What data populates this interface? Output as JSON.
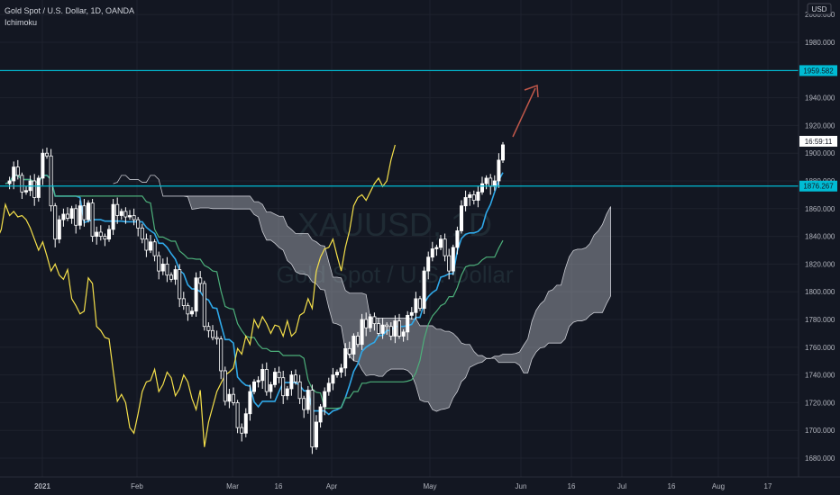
{
  "header": {
    "symbol_line": "Gold Spot / U.S. Dollar, 1D, OANDA",
    "indicator": "Ichimoku"
  },
  "watermark": {
    "ticker": "XAUUSD, 1D",
    "name": "Gold Spot / U.S. Dollar"
  },
  "currency_label": "USD",
  "price_labels": {
    "resistance": "1959.582",
    "current_time": "16:59:11",
    "support": "1876.267"
  },
  "colors": {
    "background": "#131722",
    "bull_candle": "#ffffff",
    "bear_candle": "#ffffff",
    "conversion_line": "#2fa8e8",
    "base_line": "#4caf7a",
    "lagging_span": "#f5e04a",
    "cloud_fill": "#b2b5be",
    "horizontal_line": "#00bcd4",
    "arrow": "#c0574a"
  },
  "chart_data": {
    "type": "candlestick",
    "title": "Gold Spot / U.S. Dollar, 1D, OANDA",
    "indicator": "Ichimoku",
    "ylim": [
      1670,
      2014
    ],
    "y_ticks": [
      1680,
      1700,
      1720,
      1740,
      1760,
      1780,
      1800,
      1820,
      1840,
      1860,
      1880,
      1900,
      1920,
      1940,
      1960,
      1980,
      2000
    ],
    "x_ticks": [
      "2021",
      "Feb",
      "Mar",
      "16",
      "Apr",
      "May",
      "Jun",
      "16",
      "Jul",
      "16",
      "Aug",
      "17"
    ],
    "close_series": [
      1878,
      1880,
      1890,
      1884,
      1872,
      1873,
      1880,
      1868,
      1882,
      1900,
      1898,
      1862,
      1838,
      1852,
      1856,
      1853,
      1860,
      1848,
      1862,
      1852,
      1864,
      1840,
      1843,
      1840,
      1838,
      1845,
      1863,
      1855,
      1858,
      1854,
      1855,
      1852,
      1846,
      1838,
      1830,
      1836,
      1826,
      1815,
      1820,
      1812,
      1809,
      1816,
      1795,
      1790,
      1784,
      1786,
      1810,
      1806,
      1775,
      1772,
      1767,
      1766,
      1743,
      1721,
      1726,
      1720,
      1702,
      1698,
      1712,
      1728,
      1735,
      1736,
      1744,
      1728,
      1733,
      1742,
      1738,
      1725,
      1730,
      1740,
      1735,
      1723,
      1715,
      1729,
      1688,
      1706,
      1717,
      1728,
      1734,
      1740,
      1742,
      1745,
      1759,
      1755,
      1768,
      1762,
      1780,
      1774,
      1782,
      1777,
      1770,
      1776,
      1775,
      1768,
      1779,
      1768,
      1771,
      1783,
      1785,
      1795,
      1788,
      1815,
      1825,
      1831,
      1832,
      1838,
      1826,
      1815,
      1832,
      1844,
      1862,
      1868,
      1870,
      1866,
      1872,
      1878,
      1882,
      1876,
      1880,
      1895,
      1906
    ],
    "horizontal_levels": [
      1959.582,
      1876.267
    ],
    "current_price": 1906
  }
}
